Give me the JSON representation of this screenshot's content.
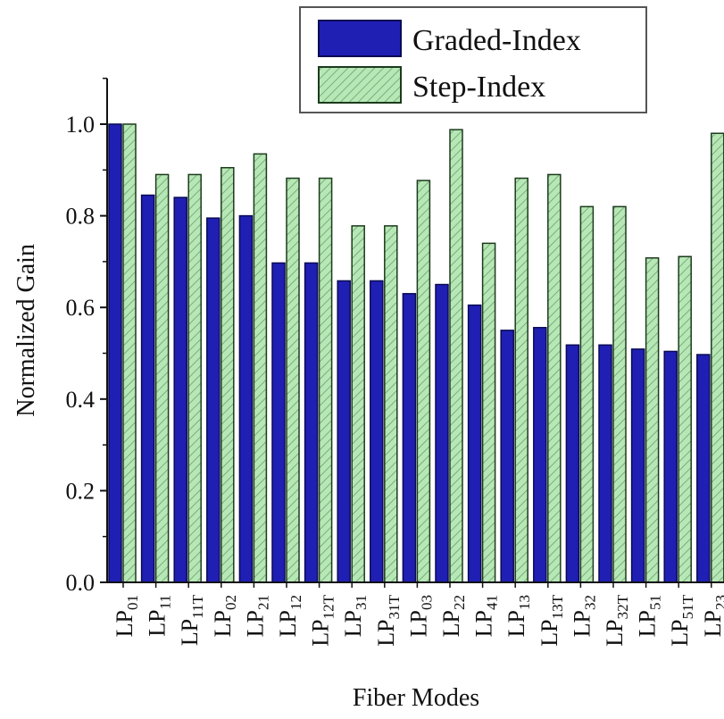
{
  "chart_data": {
    "type": "bar",
    "title": "",
    "xlabel": "Fiber Modes",
    "ylabel": "Normalized Gain",
    "ylim": [
      0,
      1.1
    ],
    "yticks": [
      "0.0",
      "0.2",
      "0.4",
      "0.6",
      "0.8",
      "1.0"
    ],
    "ytick_values": [
      0,
      0.2,
      0.4,
      0.6,
      0.8,
      1.0
    ],
    "grid": false,
    "legend_position": "top-right",
    "categories": [
      {
        "base": "LP",
        "sub": "01"
      },
      {
        "base": "LP",
        "sub": "11"
      },
      {
        "base": "LP",
        "sub": "11T"
      },
      {
        "base": "LP",
        "sub": "02"
      },
      {
        "base": "LP",
        "sub": "21"
      },
      {
        "base": "LP",
        "sub": "12"
      },
      {
        "base": "LP",
        "sub": "12T"
      },
      {
        "base": "LP",
        "sub": "31"
      },
      {
        "base": "LP",
        "sub": "31T"
      },
      {
        "base": "LP",
        "sub": "03"
      },
      {
        "base": "LP",
        "sub": "22"
      },
      {
        "base": "LP",
        "sub": "41"
      },
      {
        "base": "LP",
        "sub": "13"
      },
      {
        "base": "LP",
        "sub": "13T"
      },
      {
        "base": "LP",
        "sub": "32"
      },
      {
        "base": "LP",
        "sub": "32T"
      },
      {
        "base": "LP",
        "sub": "51"
      },
      {
        "base": "LP",
        "sub": "51T"
      },
      {
        "base": "LP",
        "sub": "23"
      }
    ],
    "series": [
      {
        "name": "Graded-Index",
        "color": "#1f1fb4",
        "edge_color": "#0a0a55",
        "values": [
          1.0,
          0.845,
          0.84,
          0.795,
          0.8,
          0.697,
          0.697,
          0.658,
          0.658,
          0.63,
          0.65,
          0.605,
          0.55,
          0.556,
          0.518,
          0.518,
          0.509,
          0.504,
          0.497
        ]
      },
      {
        "name": "Step-Index",
        "color": "#b6e8b6",
        "edge_color": "#1c3a1c",
        "hatch": "diagonal",
        "values": [
          1.0,
          0.89,
          0.89,
          0.905,
          0.935,
          0.882,
          0.882,
          0.778,
          0.778,
          0.877,
          0.988,
          0.74,
          0.882,
          0.89,
          0.82,
          0.82,
          0.708,
          0.711,
          0.98
        ]
      }
    ]
  }
}
